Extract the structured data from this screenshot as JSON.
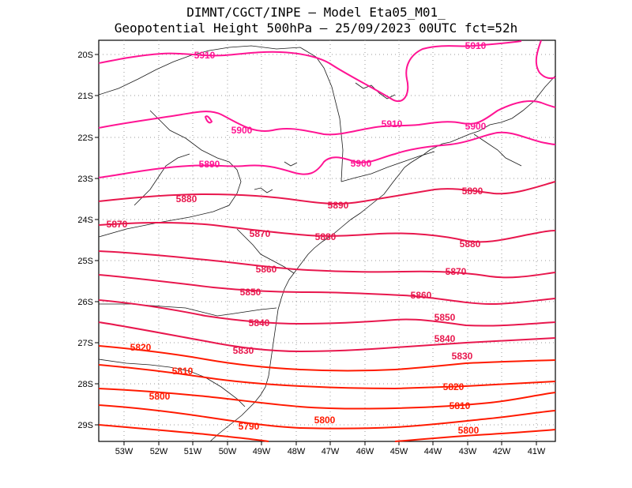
{
  "title_line1": "DIMNT/CGCT/INPE  –   Model Eta05_M01_",
  "title_line2": "Geopotential Height 500hPa  –   25/09/2023 00UTC fct=52h",
  "axes": {
    "lon_ticks": [
      "53W",
      "52W",
      "51W",
      "50W",
      "49W",
      "48W",
      "47W",
      "46W",
      "45W",
      "44W",
      "43W",
      "42W",
      "41W"
    ],
    "lat_ticks": [
      "20S",
      "21S",
      "22S",
      "23S",
      "24S",
      "25S",
      "26S",
      "27S",
      "28S",
      "29S"
    ]
  },
  "contour_labels": [
    "5910",
    "5910",
    "5910",
    "5900",
    "5900",
    "5900",
    "5890",
    "5890",
    "5890",
    "5880",
    "5880",
    "5880",
    "5870",
    "5870",
    "5870",
    "5860",
    "5860",
    "5850",
    "5850",
    "5840",
    "5840",
    "5830",
    "5830",
    "5820",
    "5820",
    "5810",
    "5810",
    "5800",
    "5800",
    "5800",
    "5790"
  ],
  "colors": {
    "high": "#ff1493",
    "mid": "#e8174d",
    "low": "#ff1a00",
    "coast": "#000000",
    "grid": "#9a9a9a"
  }
}
